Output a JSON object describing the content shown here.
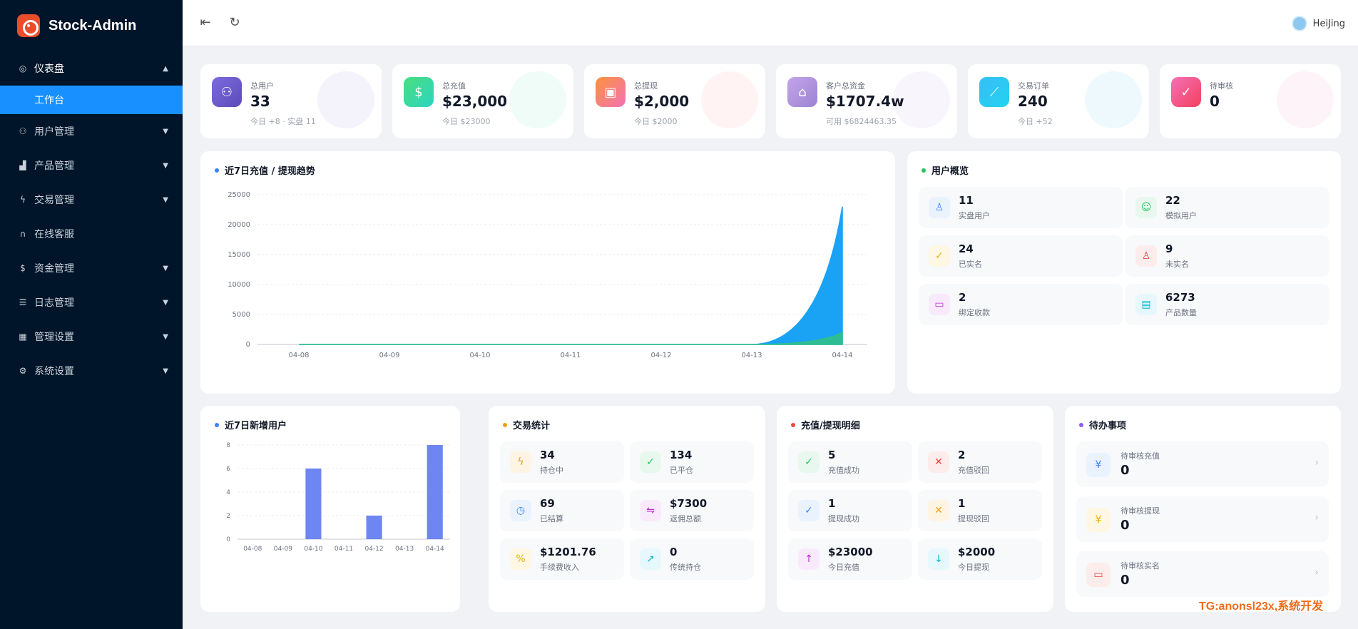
{
  "app": {
    "title": "Stock-Admin"
  },
  "sidebar": {
    "items": [
      {
        "label": "仪表盘",
        "icon": "dashboard-icon"
      },
      {
        "label": "工作台",
        "icon": ""
      },
      {
        "label": "用户管理",
        "icon": "users-icon"
      },
      {
        "label": "产品管理",
        "icon": "bar-chart-icon"
      },
      {
        "label": "交易管理",
        "icon": "lightning-icon"
      },
      {
        "label": "在线客服",
        "icon": "headset-icon"
      },
      {
        "label": "资金管理",
        "icon": "dollar-icon"
      },
      {
        "label": "日志管理",
        "icon": "log-icon"
      },
      {
        "label": "管理设置",
        "icon": "grid-icon"
      },
      {
        "label": "系统设置",
        "icon": "gear-icon"
      }
    ]
  },
  "header": {
    "user_name": "HeiJing"
  },
  "stats": [
    {
      "label": "总用户",
      "value": "33",
      "sub": "今日 +8 · 实盘 11",
      "color": "#6d5bd0"
    },
    {
      "label": "总充值",
      "value": "$23,000",
      "sub": "今日 $23000",
      "color": "#34d399"
    },
    {
      "label": "总提现",
      "value": "$2,000",
      "sub": "今日 $2000",
      "color": "#f97366"
    },
    {
      "label": "客户总资金",
      "value": "$1707.4w",
      "sub": "可用 $6824463.35",
      "color": "#a78bda"
    },
    {
      "label": "交易订单",
      "value": "240",
      "sub": "今日 +52",
      "color": "#22b8f0"
    },
    {
      "label": "待审核",
      "value": "0",
      "sub": "",
      "color": "#f06aa4"
    }
  ],
  "trend": {
    "title": "近7日充值 / 提现趋势",
    "chart_data": {
      "type": "area",
      "x": [
        "04-08",
        "04-09",
        "04-10",
        "04-11",
        "04-12",
        "04-13",
        "04-14"
      ],
      "series": [
        {
          "values": [
            0,
            0,
            0,
            0,
            0,
            0,
            23000
          ],
          "color": "#1aa2f5"
        },
        {
          "values": [
            0,
            0,
            0,
            0,
            0,
            0,
            2000
          ],
          "color": "#2fc08a"
        }
      ],
      "yticks": [
        "0",
        "5000",
        "10000",
        "15000",
        "20000",
        "25000"
      ],
      "ylim": [
        0,
        25000
      ]
    }
  },
  "overview": {
    "title": "用户概览",
    "tiles": [
      {
        "value": "11",
        "label": "实盘用户",
        "icon": "user-icon",
        "color": "#3b82f6",
        "bg": "#eaf2fe"
      },
      {
        "value": "22",
        "label": "模拟用户",
        "icon": "robot-icon",
        "color": "#22c55e",
        "bg": "#e8f8ee"
      },
      {
        "value": "24",
        "label": "已实名",
        "icon": "shield-check-icon",
        "color": "#eab308",
        "bg": "#fdf7e3"
      },
      {
        "value": "9",
        "label": "未实名",
        "icon": "user-x-icon",
        "color": "#ef4444",
        "bg": "#fdecec"
      },
      {
        "value": "2",
        "label": "绑定收款",
        "icon": "card-icon",
        "color": "#c026d3",
        "bg": "#f8eafb"
      },
      {
        "value": "6273",
        "label": "产品数量",
        "icon": "clipboard-icon",
        "color": "#06b6d4",
        "bg": "#e6f8fb"
      }
    ]
  },
  "new_users": {
    "title": "近7日新增用户",
    "chart_data": {
      "type": "bar",
      "categories": [
        "04-08",
        "04-09",
        "04-10",
        "04-11",
        "04-12",
        "04-13",
        "04-14"
      ],
      "values": [
        0,
        0,
        6,
        0,
        2,
        0,
        8
      ],
      "yticks": [
        "0",
        "2",
        "4",
        "6",
        "8"
      ],
      "ylim": [
        0,
        8
      ],
      "color": "#6d86f2"
    }
  },
  "trade": {
    "title": "交易统计",
    "tiles": [
      {
        "value": "34",
        "label": "持仓中",
        "icon": "lightning-icon",
        "color": "#f59e0b",
        "bg": "#fef4e4"
      },
      {
        "value": "134",
        "label": "已平仓",
        "icon": "check-circle-icon",
        "color": "#22c55e",
        "bg": "#e8f8ee"
      },
      {
        "value": "69",
        "label": "已结算",
        "icon": "clock-icon",
        "color": "#3b82f6",
        "bg": "#eaf2fe"
      },
      {
        "value": "$7300",
        "label": "返佣总额",
        "icon": "swap-icon",
        "color": "#c026d3",
        "bg": "#f8eafb"
      },
      {
        "value": "$1201.76",
        "label": "手续费收入",
        "icon": "percent-icon",
        "color": "#eab308",
        "bg": "#fdf7e3"
      },
      {
        "value": "0",
        "label": "传统持仓",
        "icon": "trend-icon",
        "color": "#06b6d4",
        "bg": "#e6f8fb"
      }
    ]
  },
  "detail": {
    "title": "充值/提现明细",
    "tiles": [
      {
        "value": "5",
        "label": "充值成功",
        "icon": "check-icon",
        "color": "#22c55e",
        "bg": "#e8f8ee"
      },
      {
        "value": "2",
        "label": "充值驳回",
        "icon": "x-icon",
        "color": "#ef4444",
        "bg": "#fdecec"
      },
      {
        "value": "1",
        "label": "提现成功",
        "icon": "check-icon",
        "color": "#3b82f6",
        "bg": "#eaf2fe"
      },
      {
        "value": "1",
        "label": "提现驳回",
        "icon": "x-icon",
        "color": "#f59e0b",
        "bg": "#fef4e4"
      },
      {
        "value": "$23000",
        "label": "今日充值",
        "icon": "arrow-up-icon",
        "color": "#c026d3",
        "bg": "#f8eafb"
      },
      {
        "value": "$2000",
        "label": "今日提现",
        "icon": "arrow-down-icon",
        "color": "#06b6d4",
        "bg": "#e6f8fb"
      }
    ]
  },
  "todo": {
    "title": "待办事项",
    "items": [
      {
        "label": "待审核充值",
        "value": "0",
        "icon": "yen-icon",
        "color": "#3b82f6",
        "bg": "#eaf2fe"
      },
      {
        "label": "待审核提现",
        "value": "0",
        "icon": "yen-box-icon",
        "color": "#eab308",
        "bg": "#fdf7e3"
      },
      {
        "label": "待审核实名",
        "value": "0",
        "icon": "id-card-icon",
        "color": "#ef4444",
        "bg": "#fdecec"
      }
    ]
  },
  "watermark": "TG:anonsl23x,系统开发"
}
